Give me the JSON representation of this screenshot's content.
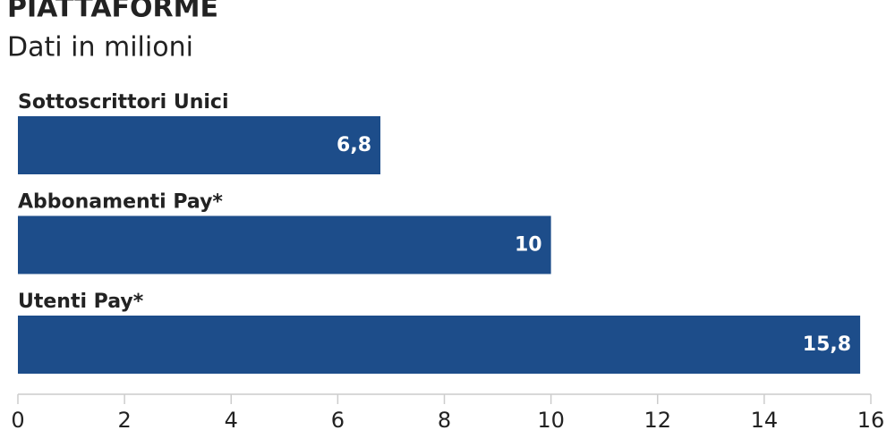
{
  "chart_data": {
    "type": "hbar",
    "title": "PIATTAFORME",
    "subtitle": "Dati in milioni",
    "categories": [
      "Sottoscrittori Unici",
      "Abbonamenti Pay*",
      "Utenti Pay*"
    ],
    "values": [
      6.8,
      10,
      15.8
    ],
    "value_labels": [
      "6,8",
      "10",
      "15,8"
    ],
    "color": "#1d4d8a",
    "xlim": [
      0,
      16
    ],
    "xticks": [
      0,
      2,
      4,
      6,
      8,
      10,
      12,
      14,
      16
    ]
  }
}
